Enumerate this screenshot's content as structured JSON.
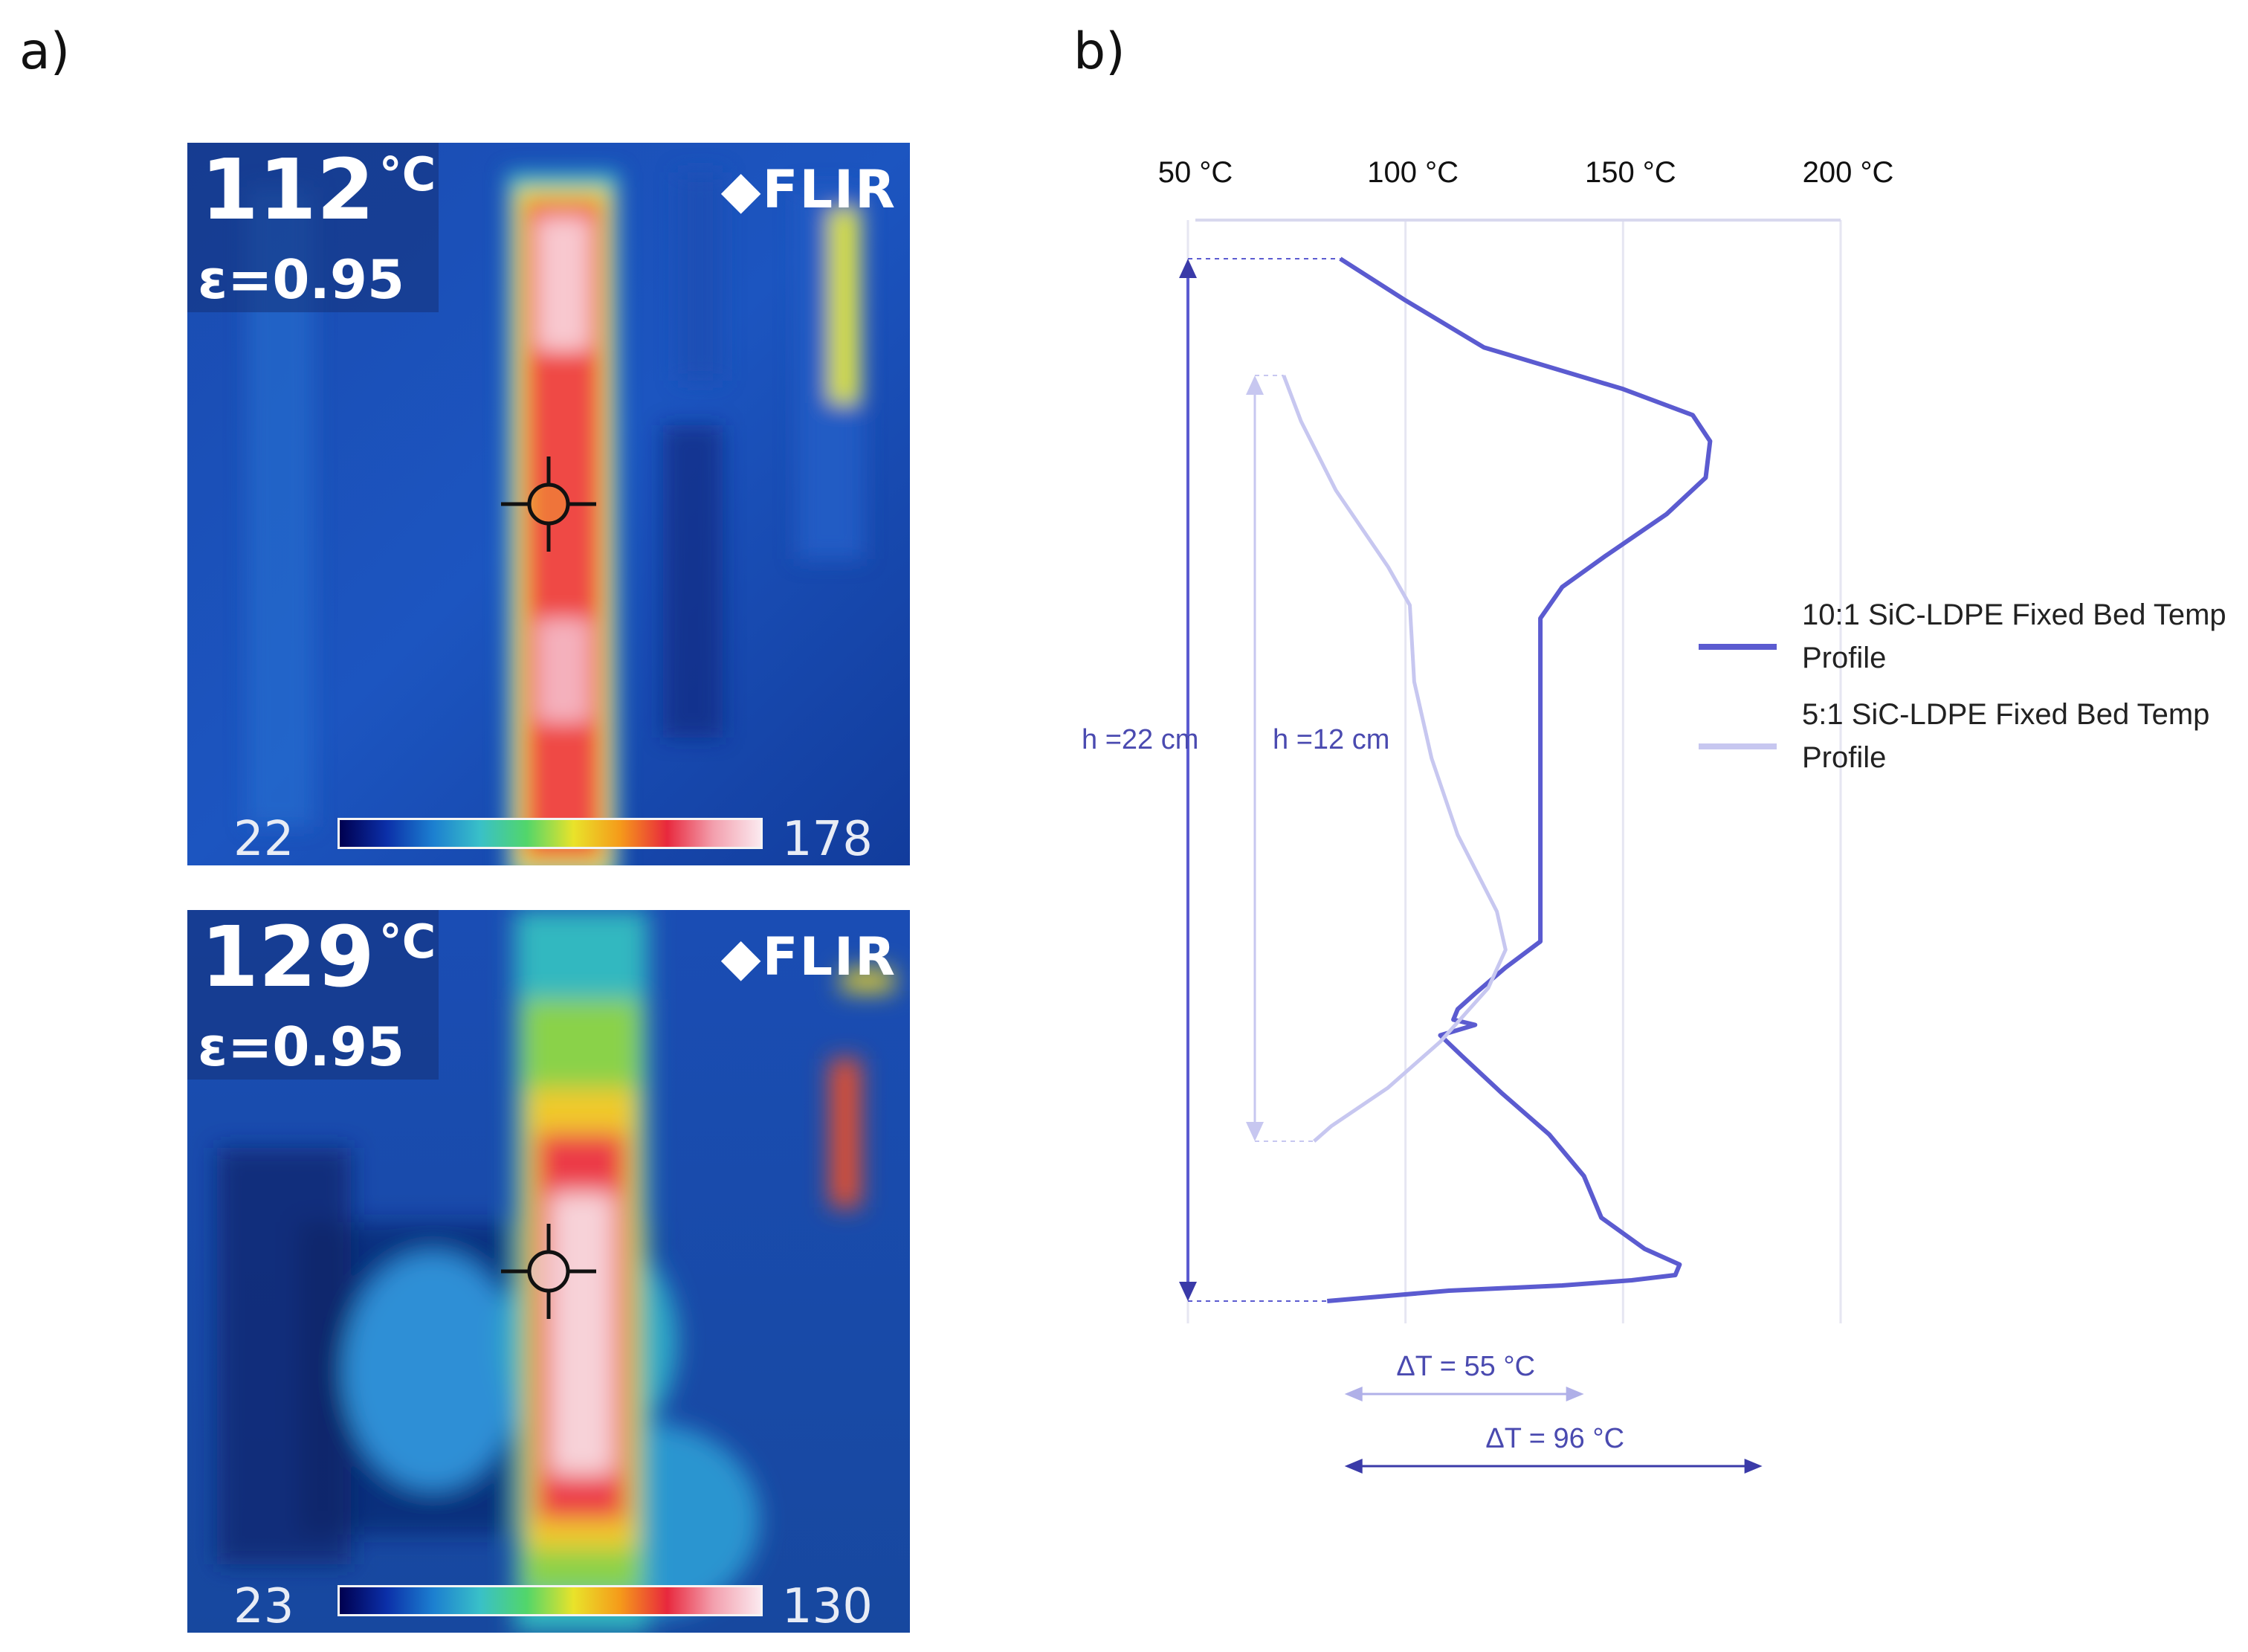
{
  "panels": {
    "a": "a)",
    "b": "b)"
  },
  "thermal_images": [
    {
      "temperature": "112",
      "unit": "°C",
      "emissivity": "ε=0.95",
      "brand": "FLIR",
      "scale_min": "22",
      "scale_max": "178"
    },
    {
      "temperature": "129",
      "unit": "°C",
      "emissivity": "ε=0.95",
      "brand": "FLIR",
      "scale_min": "23",
      "scale_max": "130"
    }
  ],
  "chart_data": {
    "type": "line",
    "x_axis_position": "top",
    "x_ticks": [
      50,
      100,
      150,
      200
    ],
    "x_tick_labels": [
      "50 °C",
      "100 °C",
      "150 °C",
      "200 °C"
    ],
    "xlim": [
      50,
      200
    ],
    "grid": true,
    "legend_position": "right",
    "series": [
      {
        "name": "10:1 SiC-LDPE Fixed Bed Temp Profile",
        "color": "#5b5bd0",
        "height_cm": 22,
        "points": [
          [
            85,
            0
          ],
          [
            100,
            0.04
          ],
          [
            118,
            0.085
          ],
          [
            150,
            0.125
          ],
          [
            166,
            0.15
          ],
          [
            170,
            0.175
          ],
          [
            169,
            0.21
          ],
          [
            160,
            0.245
          ],
          [
            146,
            0.285
          ],
          [
            136,
            0.315
          ],
          [
            131,
            0.345
          ],
          [
            131,
            0.4
          ],
          [
            131,
            0.5
          ],
          [
            131,
            0.6
          ],
          [
            131,
            0.655
          ],
          [
            123,
            0.68
          ],
          [
            116,
            0.705
          ],
          [
            112,
            0.72
          ],
          [
            111,
            0.73
          ],
          [
            116,
            0.735
          ],
          [
            112,
            0.74
          ],
          [
            108,
            0.745
          ],
          [
            113,
            0.765
          ],
          [
            122,
            0.8
          ],
          [
            133,
            0.84
          ],
          [
            141,
            0.88
          ],
          [
            145,
            0.92
          ],
          [
            155,
            0.95
          ],
          [
            163,
            0.965
          ],
          [
            162,
            0.975
          ],
          [
            152,
            0.98
          ],
          [
            136,
            0.985
          ],
          [
            110,
            0.99
          ],
          [
            82,
            1.0
          ]
        ]
      },
      {
        "name": "5:1 SiC-LDPE Fixed Bed Temp Profile",
        "color": "#c7c7f0",
        "height_cm": 12,
        "points": [
          [
            72,
            0
          ],
          [
            76,
            0.06
          ],
          [
            84,
            0.15
          ],
          [
            96,
            0.25
          ],
          [
            101,
            0.3
          ],
          [
            102,
            0.4
          ],
          [
            106,
            0.5
          ],
          [
            112,
            0.6
          ],
          [
            121,
            0.7
          ],
          [
            123,
            0.75
          ],
          [
            119,
            0.8
          ],
          [
            108,
            0.87
          ],
          [
            96,
            0.93
          ],
          [
            83,
            0.98
          ],
          [
            79,
            1.0
          ]
        ]
      }
    ],
    "annotations": {
      "h_outer": "h =22 cm",
      "h_inner": "h =12 cm",
      "delta_small": "ΔT = 55 °C",
      "delta_large": "ΔT = 96 °C"
    }
  }
}
